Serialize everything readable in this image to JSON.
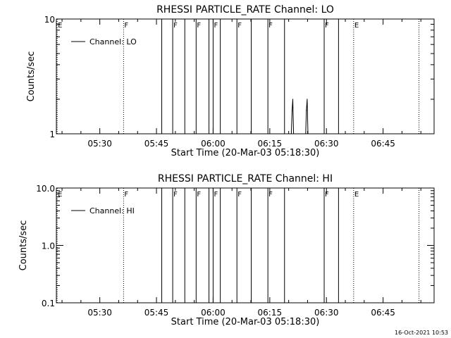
{
  "footer": {
    "timestamp": "16-Oct-2021 10:53"
  },
  "chart_data": [
    {
      "type": "line",
      "title": "RHESSI PARTICLE_RATE Channel: LO",
      "xlabel": "Start Time (20-Mar-03 05:18:30)",
      "ylabel": "Counts/sec",
      "xscale": "time (minutes after 05:18:30)",
      "xlim": [
        0,
        100
      ],
      "x_ticks": [
        {
          "x": 11.5,
          "label": "05:30"
        },
        {
          "x": 26.5,
          "label": "05:45"
        },
        {
          "x": 41.5,
          "label": "06:00"
        },
        {
          "x": 56.5,
          "label": "06:15"
        },
        {
          "x": 71.5,
          "label": "06:30"
        },
        {
          "x": 86.5,
          "label": "06:45"
        }
      ],
      "yscale": "log",
      "ylim": [
        1,
        10
      ],
      "y_ticks": [
        {
          "v": 1,
          "label": "1"
        },
        {
          "v": 10,
          "label": "10"
        }
      ],
      "legend": {
        "position": "top-left",
        "entries": [
          "Channel: LO"
        ]
      },
      "series": [
        {
          "name": "Channel: LO",
          "x": [
            62.2,
            62.4,
            62.6,
            62.8,
            66.0,
            66.2,
            66.4,
            66.6
          ],
          "y": [
            1,
            1.6,
            2,
            1,
            1,
            1.6,
            2,
            1
          ]
        }
      ],
      "markers": [
        {
          "x": 0.2,
          "style": "dotted",
          "label": "E"
        },
        {
          "x": 17.8,
          "style": "dotted",
          "label": "F"
        },
        {
          "x": 27.9,
          "style": "solid",
          "label": ""
        },
        {
          "x": 30.8,
          "style": "solid",
          "label": "F"
        },
        {
          "x": 34.0,
          "style": "solid",
          "label": ""
        },
        {
          "x": 37.0,
          "style": "solid",
          "label": "F"
        },
        {
          "x": 40.4,
          "style": "solid",
          "label": ""
        },
        {
          "x": 41.5,
          "style": "solid",
          "label": "F"
        },
        {
          "x": 43.4,
          "style": "solid",
          "label": ""
        },
        {
          "x": 47.8,
          "style": "solid",
          "label": "F"
        },
        {
          "x": 51.6,
          "style": "solid",
          "label": ""
        },
        {
          "x": 56.0,
          "style": "solid",
          "label": "F"
        },
        {
          "x": 60.4,
          "style": "solid",
          "label": ""
        },
        {
          "x": 70.9,
          "style": "solid",
          "label": "F"
        },
        {
          "x": 74.7,
          "style": "solid",
          "label": ""
        },
        {
          "x": 78.7,
          "style": "dotted",
          "label": "E"
        },
        {
          "x": 96.0,
          "style": "dotted",
          "label": ""
        }
      ]
    },
    {
      "type": "line",
      "title": "RHESSI PARTICLE_RATE Channel: HI",
      "xlabel": "Start Time (20-Mar-03 05:18:30)",
      "ylabel": "Counts/sec",
      "xscale": "time (minutes after 05:18:30)",
      "xlim": [
        0,
        100
      ],
      "x_ticks": [
        {
          "x": 11.5,
          "label": "05:30"
        },
        {
          "x": 26.5,
          "label": "05:45"
        },
        {
          "x": 41.5,
          "label": "06:00"
        },
        {
          "x": 56.5,
          "label": "06:15"
        },
        {
          "x": 71.5,
          "label": "06:30"
        },
        {
          "x": 86.5,
          "label": "06:45"
        }
      ],
      "yscale": "log",
      "ylim": [
        0.1,
        10
      ],
      "y_ticks": [
        {
          "v": 0.1,
          "label": "0.1"
        },
        {
          "v": 1,
          "label": "1.0"
        },
        {
          "v": 10,
          "label": "10.0"
        }
      ],
      "legend": {
        "position": "top-left",
        "entries": [
          "Channel: HI"
        ]
      },
      "series": [
        {
          "name": "Channel: HI",
          "x": [],
          "y": []
        }
      ],
      "markers": [
        {
          "x": 0.2,
          "style": "dotted",
          "label": "E"
        },
        {
          "x": 17.8,
          "style": "dotted",
          "label": "F"
        },
        {
          "x": 27.9,
          "style": "solid",
          "label": ""
        },
        {
          "x": 30.8,
          "style": "solid",
          "label": "F"
        },
        {
          "x": 34.0,
          "style": "solid",
          "label": ""
        },
        {
          "x": 37.0,
          "style": "solid",
          "label": "F"
        },
        {
          "x": 40.4,
          "style": "solid",
          "label": ""
        },
        {
          "x": 41.5,
          "style": "solid",
          "label": "F"
        },
        {
          "x": 43.4,
          "style": "solid",
          "label": ""
        },
        {
          "x": 47.8,
          "style": "solid",
          "label": "F"
        },
        {
          "x": 51.6,
          "style": "solid",
          "label": ""
        },
        {
          "x": 56.0,
          "style": "solid",
          "label": "F"
        },
        {
          "x": 60.4,
          "style": "solid",
          "label": ""
        },
        {
          "x": 70.9,
          "style": "solid",
          "label": "F"
        },
        {
          "x": 74.7,
          "style": "solid",
          "label": ""
        },
        {
          "x": 78.7,
          "style": "dotted",
          "label": "E"
        },
        {
          "x": 96.0,
          "style": "dotted",
          "label": ""
        }
      ]
    }
  ]
}
